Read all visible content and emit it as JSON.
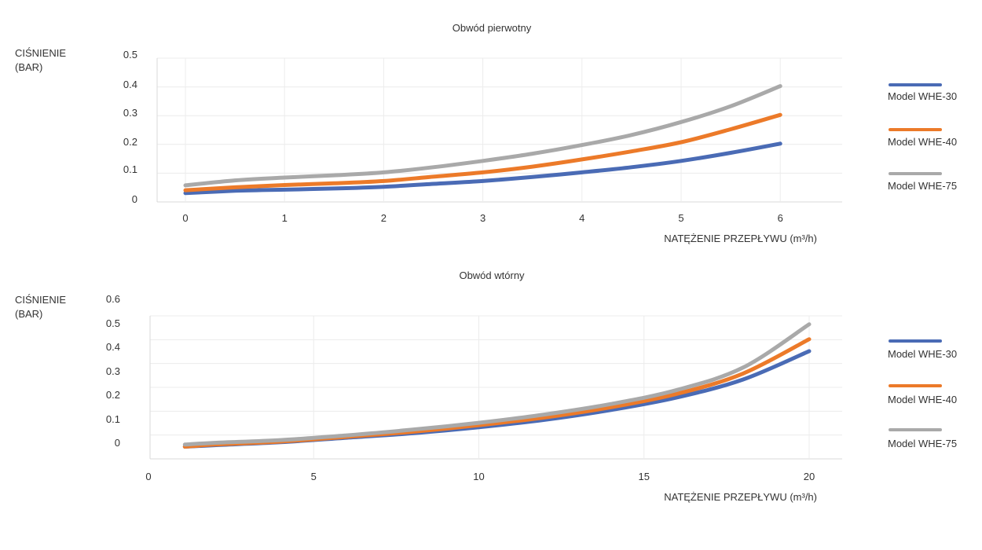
{
  "charts": [
    {
      "title": "Obwód pierwotny",
      "ylabel": [
        "CIŚNIENIE",
        "(BAR)"
      ],
      "xlabel": "NATĘŻENIE PRZEPŁYWU (m³/h)",
      "legend": [
        "Model WHE-30",
        "Model WHE-40",
        "Model WHE-75"
      ]
    },
    {
      "title": "Obwód wtórny",
      "ylabel": [
        "CIŚNIENIE",
        "(BAR)"
      ],
      "xlabel": "NATĘŻENIE PRZEPŁYWU (m³/h)",
      "legend": [
        "Model WHE-30",
        "Model WHE-40",
        "Model WHE-75"
      ]
    }
  ],
  "chart_data": [
    {
      "type": "line",
      "title": "Obwód pierwotny",
      "xlabel": "NATĘŻENIE PRZEPŁYWU (m³/h)",
      "ylabel": "CIŚNIENIE (BAR)",
      "xlim": [
        0,
        6.5
      ],
      "ylim": [
        0,
        0.5
      ],
      "xticks": [
        "0",
        "1",
        "2",
        "3",
        "4",
        "5",
        "6"
      ],
      "yticks": [
        "0",
        "0.1",
        "0.2",
        "0.3",
        "0.4",
        "0.5"
      ],
      "grid": true,
      "legend_position": "right",
      "series": [
        {
          "name": "Model WHE-30",
          "color": "#4a6bb5",
          "x": [
            0,
            0.5,
            1,
            1.5,
            2,
            2.5,
            3,
            3.5,
            4,
            4.5,
            5,
            5.5,
            6
          ],
          "y": [
            0.028,
            0.036,
            0.04,
            0.044,
            0.05,
            0.06,
            0.07,
            0.084,
            0.1,
            0.118,
            0.14,
            0.168,
            0.2
          ]
        },
        {
          "name": "Model WHE-40",
          "color": "#ec7a29",
          "x": [
            0,
            0.5,
            1,
            1.5,
            2,
            2.5,
            3,
            3.5,
            4,
            4.5,
            5,
            5.5,
            6
          ],
          "y": [
            0.038,
            0.048,
            0.056,
            0.062,
            0.07,
            0.085,
            0.1,
            0.12,
            0.145,
            0.173,
            0.205,
            0.25,
            0.3
          ]
        },
        {
          "name": "Model WHE-75",
          "color": "#a9a9a9",
          "x": [
            0,
            0.5,
            1,
            1.5,
            2,
            2.5,
            3,
            3.5,
            4,
            4.5,
            5,
            5.5,
            6
          ],
          "y": [
            0.055,
            0.072,
            0.082,
            0.09,
            0.1,
            0.118,
            0.14,
            0.165,
            0.195,
            0.23,
            0.275,
            0.33,
            0.4
          ]
        }
      ]
    },
    {
      "type": "line",
      "title": "Obwód wtórny",
      "xlabel": "NATĘŻENIE PRZEPŁYWU (m³/h)",
      "ylabel": "CIŚNIENIE (BAR)",
      "xlim": [
        0,
        21
      ],
      "ylim": [
        0,
        0.6
      ],
      "xticks": [
        "0",
        "5",
        "10",
        "15",
        "20"
      ],
      "yticks": [
        "0",
        "0.1",
        "0.2",
        "0.3",
        "0.4",
        "0.5",
        "0.6"
      ],
      "grid": true,
      "legend_position": "right",
      "series": [
        {
          "name": "Model WHE-30",
          "color": "#4a6bb5",
          "x": [
            1.1,
            2,
            4,
            6,
            8,
            10,
            12,
            14,
            16,
            18,
            20
          ],
          "y": [
            0.025,
            0.03,
            0.04,
            0.055,
            0.07,
            0.09,
            0.115,
            0.148,
            0.19,
            0.25,
            0.345
          ]
        },
        {
          "name": "Model WHE-40",
          "color": "#ec7a29",
          "x": [
            1.1,
            2,
            4,
            6,
            8,
            10,
            12,
            14,
            16,
            18,
            20
          ],
          "y": [
            0.025,
            0.032,
            0.042,
            0.058,
            0.075,
            0.097,
            0.123,
            0.157,
            0.202,
            0.27,
            0.385
          ]
        },
        {
          "name": "Model WHE-75",
          "color": "#a9a9a9",
          "x": [
            1.1,
            2,
            4,
            6,
            8,
            10,
            12,
            14,
            16,
            18,
            20
          ],
          "y": [
            0.032,
            0.038,
            0.047,
            0.063,
            0.082,
            0.105,
            0.133,
            0.168,
            0.215,
            0.29,
            0.435
          ]
        }
      ]
    }
  ]
}
